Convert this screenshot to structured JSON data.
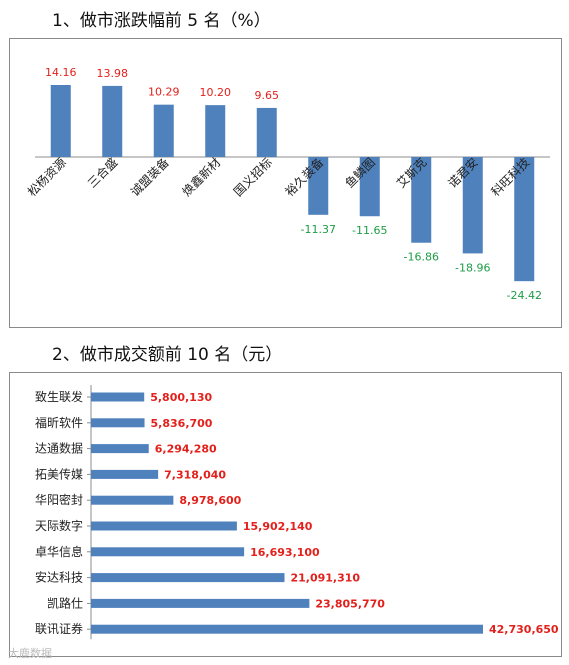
{
  "section1": {
    "title": "1、做市涨跌幅前 5 名（%）"
  },
  "section2": {
    "title": "2、做市成交额前 10 名（元）"
  },
  "colors": {
    "bar": "#4f81bd",
    "positive_label": "#e3211c",
    "negative_label": "#1e9c46"
  },
  "chart_data": [
    {
      "type": "bar",
      "title": "1、做市涨跌幅前 5 名（%）",
      "categories": [
        "松杨资源",
        "三合盛",
        "诚盟装备",
        "焕鑫新材",
        "国义招标",
        "裕久装备",
        "鱼鳞图",
        "艾斯克",
        "诺君安",
        "科旺科技"
      ],
      "values": [
        14.16,
        13.98,
        10.29,
        10.2,
        9.65,
        -11.37,
        -11.65,
        -16.86,
        -18.96,
        -24.42
      ],
      "value_labels": [
        "14.16",
        "13.98",
        "10.29",
        "10.20",
        "9.65",
        "-11.37",
        "-11.65",
        "-16.86",
        "-18.96",
        "-24.42"
      ],
      "ylim": [
        -26,
        18
      ],
      "grid": false
    },
    {
      "type": "bar",
      "orientation": "horizontal",
      "title": "2、做市成交额前 10 名（元）",
      "categories": [
        "致生联发",
        "福昕软件",
        "达通数据",
        "拓美传媒",
        "华阳密封",
        "天际数字",
        "卓华信息",
        "安达科技",
        "凯路仕",
        "联讯证券"
      ],
      "values": [
        5800130,
        5836700,
        6294280,
        7318040,
        8978600,
        15902140,
        16693100,
        21091310,
        23805770,
        42730650
      ],
      "value_labels": [
        "5,800,130",
        "5,836,700",
        "6,294,280",
        "7,318,040",
        "8,978,600",
        "15,902,140",
        "16,693,100",
        "21,091,310",
        "23,805,770",
        "42,730,650"
      ],
      "xlim": [
        0,
        43500000
      ],
      "grid": false
    }
  ],
  "watermark": "大鹿数据"
}
